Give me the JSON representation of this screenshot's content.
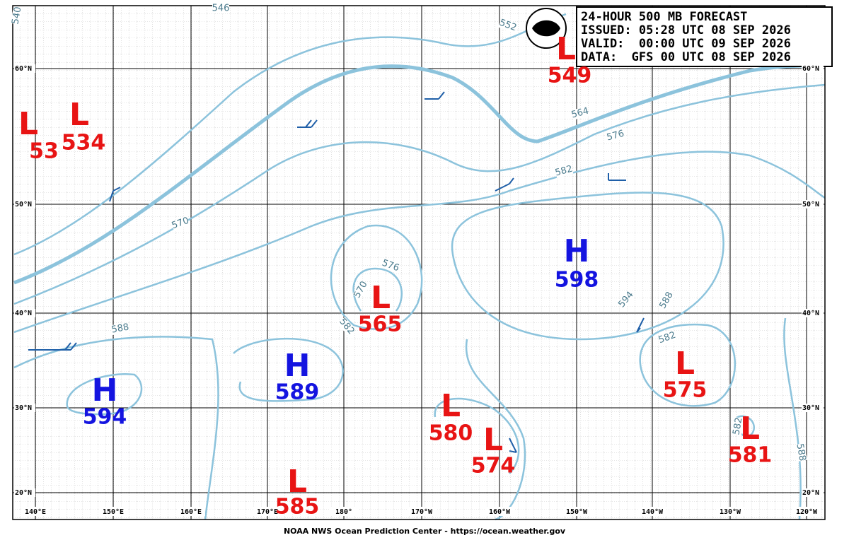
{
  "header": {
    "lines": [
      "24-HOUR 500 MB FORECAST",
      "ISSUED: 05:28 UTC 08 SEP 2026",
      "VALID:  00:00 UTC 09 SEP 2026",
      "DATA:  GFS 00 UTC 08 SEP 2026"
    ]
  },
  "centers": [
    {
      "symbol": "L",
      "value": 53
    },
    {
      "symbol": "L",
      "value": 534
    },
    {
      "symbol": "L",
      "value": 549
    },
    {
      "symbol": "H",
      "value": 598
    },
    {
      "symbol": "L",
      "value": 565
    },
    {
      "symbol": "H",
      "value": 589
    },
    {
      "symbol": "H",
      "value": 594
    },
    {
      "symbol": "L",
      "value": 575
    },
    {
      "symbol": "L",
      "value": 580
    },
    {
      "symbol": "L",
      "value": 574
    },
    {
      "symbol": "L",
      "value": 585
    },
    {
      "symbol": "L",
      "value": 581
    }
  ],
  "contour_labels": [
    540,
    546,
    552,
    564,
    576,
    582,
    570,
    576,
    570,
    582,
    588,
    594,
    588,
    582,
    582,
    588
  ],
  "lat_labels": [
    "60°N",
    "50°N",
    "40°N",
    "30°N",
    "20°N"
  ],
  "lon_labels": [
    "140°E",
    "150°E",
    "160°E",
    "170°E",
    "180°",
    "170°W",
    "160°W",
    "150°W",
    "140°W",
    "130°W",
    "120°W"
  ],
  "footer": "NOAA NWS Ocean Prediction Center - https://ocean.weather.gov"
}
